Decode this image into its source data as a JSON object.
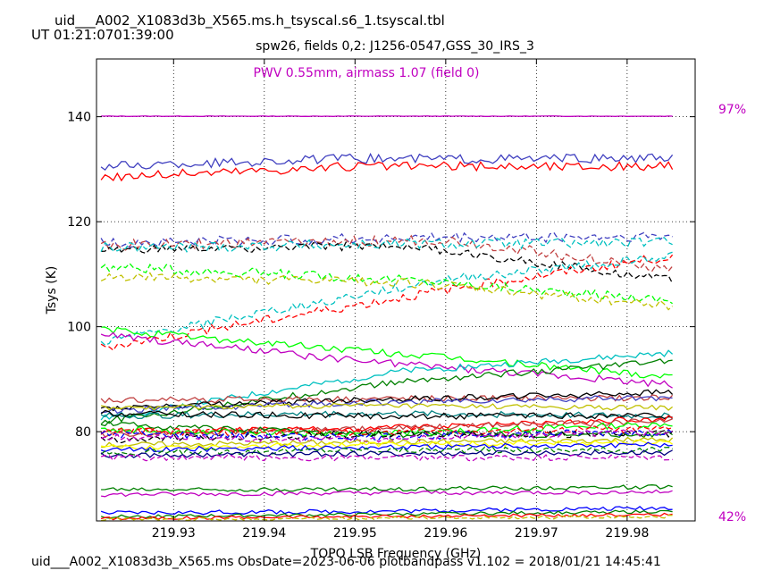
{
  "header": {
    "title": "uid___A002_X1083d3b_X565.ms.h_tsyscal.s6_1.tsyscal.tbl",
    "ut": "UT 01:21:0701:39:00"
  },
  "footer": {
    "text": "uid___A002_X1083d3b_X565.ms  ObsDate=2023-06-06   plotbandpass v1.102 = 2018/01/21 14:45:41"
  },
  "chart_data": {
    "type": "line",
    "title": "spw26,  fields 0,2: J1256-0547,GSS_30_IRS_3",
    "annotation": "PWV 0.55mm, airmass 1.07 (field 0)",
    "xlabel": "TOPO LSB Frequency (GHz)",
    "ylabel": "Tsys (K)",
    "xlim": [
      219.9215,
      219.9875
    ],
    "ylim": [
      63,
      151
    ],
    "xticks": [
      219.93,
      219.94,
      219.95,
      219.96,
      219.97,
      219.98
    ],
    "yticks": [
      80,
      100,
      120,
      140
    ],
    "grid": true,
    "right_labels": {
      "top": "97%",
      "bottom": "42%"
    },
    "series": [
      {
        "color": "#c000c0",
        "dash": false,
        "noise": 0.05,
        "x": [
          219.922,
          219.985
        ],
        "y": [
          140.1,
          140.1
        ]
      },
      {
        "color": "#4040c0",
        "dash": false,
        "noise": 0.9,
        "x": [
          219.922,
          219.95,
          219.985
        ],
        "y": [
          130.5,
          132.0,
          132.0
        ]
      },
      {
        "color": "#ff0000",
        "dash": false,
        "noise": 0.9,
        "x": [
          219.922,
          219.95,
          219.985
        ],
        "y": [
          128.5,
          130.5,
          130.5
        ]
      },
      {
        "color": "#4040c0",
        "dash": true,
        "noise": 1.0,
        "x": [
          219.922,
          219.96,
          219.985
        ],
        "y": [
          116.0,
          117.0,
          117.2
        ]
      },
      {
        "color": "#c04040",
        "dash": true,
        "noise": 1.0,
        "x": [
          219.922,
          219.96,
          219.985
        ],
        "y": [
          115.5,
          116.5,
          111.0
        ]
      },
      {
        "color": "#000000",
        "dash": true,
        "noise": 0.8,
        "x": [
          219.922,
          219.955,
          219.985
        ],
        "y": [
          114.5,
          115.5,
          109.0
        ]
      },
      {
        "color": "#00c0c0",
        "dash": true,
        "noise": 1.0,
        "x": [
          219.922,
          219.955,
          219.985
        ],
        "y": [
          115.0,
          115.8,
          116.0
        ]
      },
      {
        "color": "#ff0000",
        "dash": true,
        "noise": 0.9,
        "x": [
          219.922,
          219.96,
          219.985
        ],
        "y": [
          96.0,
          107.0,
          113.5
        ]
      },
      {
        "color": "#00c0c0",
        "dash": true,
        "noise": 0.9,
        "x": [
          219.922,
          219.96,
          219.985
        ],
        "y": [
          97.0,
          109.0,
          113.5
        ]
      },
      {
        "color": "#00ff00",
        "dash": true,
        "noise": 0.9,
        "x": [
          219.922,
          219.955,
          219.985
        ],
        "y": [
          111.5,
          109.0,
          105.0
        ]
      },
      {
        "color": "#c0c000",
        "dash": true,
        "noise": 0.9,
        "x": [
          219.922,
          219.955,
          219.985
        ],
        "y": [
          109.5,
          108.5,
          104.0
        ]
      },
      {
        "color": "#00ff00",
        "dash": false,
        "noise": 0.7,
        "x": [
          219.922,
          219.95,
          219.985
        ],
        "y": [
          99.5,
          95.5,
          90.5
        ]
      },
      {
        "color": "#c000c0",
        "dash": false,
        "noise": 0.7,
        "x": [
          219.922,
          219.95,
          219.985
        ],
        "y": [
          98.5,
          93.5,
          89.0
        ]
      },
      {
        "color": "#00c0c0",
        "dash": false,
        "noise": 0.6,
        "x": [
          219.922,
          219.955,
          219.985
        ],
        "y": [
          82.5,
          91.5,
          95.0
        ]
      },
      {
        "color": "#008000",
        "dash": false,
        "noise": 0.6,
        "x": [
          219.922,
          219.955,
          219.985
        ],
        "y": [
          82.0,
          89.5,
          93.5
        ]
      },
      {
        "color": "#c04040",
        "dash": false,
        "noise": 0.6,
        "x": [
          219.922,
          219.95,
          219.985
        ],
        "y": [
          86.0,
          86.2,
          86.5
        ]
      },
      {
        "color": "#000000",
        "dash": false,
        "noise": 0.6,
        "x": [
          219.922,
          219.95,
          219.985
        ],
        "y": [
          84.5,
          86.0,
          87.5
        ]
      },
      {
        "color": "#4040c0",
        "dash": false,
        "noise": 0.6,
        "x": [
          219.922,
          219.95,
          219.985
        ],
        "y": [
          84.0,
          85.5,
          86.5
        ]
      },
      {
        "color": "#c0c000",
        "dash": false,
        "noise": 0.5,
        "x": [
          219.922,
          219.95,
          219.985
        ],
        "y": [
          84.5,
          85.0,
          84.5
        ]
      },
      {
        "color": "#008080",
        "dash": false,
        "noise": 0.6,
        "x": [
          219.922,
          219.95,
          219.985
        ],
        "y": [
          83.0,
          83.5,
          83.0
        ]
      },
      {
        "color": "#000000",
        "dash": false,
        "noise": 0.6,
        "x": [
          219.922,
          219.95,
          219.985
        ],
        "y": [
          83.5,
          83.0,
          83.0
        ]
      },
      {
        "color": "#ff0000",
        "dash": false,
        "noise": 0.6,
        "x": [
          219.922,
          219.95,
          219.985
        ],
        "y": [
          80.0,
          80.5,
          82.5
        ]
      },
      {
        "color": "#c04040",
        "dash": false,
        "noise": 0.6,
        "x": [
          219.922,
          219.95,
          219.985
        ],
        "y": [
          79.5,
          80.5,
          82.0
        ]
      },
      {
        "color": "#00ff00",
        "dash": false,
        "noise": 0.6,
        "x": [
          219.922,
          219.95,
          219.985
        ],
        "y": [
          80.5,
          79.5,
          81.5
        ]
      },
      {
        "color": "#008000",
        "dash": false,
        "noise": 0.6,
        "x": [
          219.922,
          219.95,
          219.985
        ],
        "y": [
          81.5,
          79.5,
          79.5
        ]
      },
      {
        "color": "#ff0000",
        "dash": true,
        "noise": 0.7,
        "x": [
          219.922,
          219.95,
          219.985
        ],
        "y": [
          80.0,
          80.0,
          80.5
        ]
      },
      {
        "color": "#000000",
        "dash": true,
        "noise": 0.7,
        "x": [
          219.922,
          219.95,
          219.985
        ],
        "y": [
          78.5,
          79.5,
          79.5
        ]
      },
      {
        "color": "#0000ff",
        "dash": true,
        "noise": 0.7,
        "x": [
          219.922,
          219.95,
          219.985
        ],
        "y": [
          79.5,
          79.0,
          80.0
        ]
      },
      {
        "color": "#c000c0",
        "dash": true,
        "noise": 0.7,
        "x": [
          219.922,
          219.95,
          219.985
        ],
        "y": [
          79.0,
          78.5,
          80.0
        ]
      },
      {
        "color": "#c0c000",
        "dash": false,
        "noise": 0.5,
        "x": [
          219.922,
          219.95,
          219.985
        ],
        "y": [
          77.5,
          78.0,
          78.5
        ]
      },
      {
        "color": "#ffff00",
        "dash": false,
        "noise": 0.5,
        "x": [
          219.922,
          219.95,
          219.985
        ],
        "y": [
          77.0,
          77.5,
          78.0
        ]
      },
      {
        "color": "#0000ff",
        "dash": false,
        "noise": 0.5,
        "x": [
          219.922,
          219.95,
          219.985
        ],
        "y": [
          76.5,
          77.0,
          77.5
        ]
      },
      {
        "color": "#008000",
        "dash": true,
        "noise": 0.6,
        "x": [
          219.922,
          219.95,
          219.985
        ],
        "y": [
          76.0,
          76.5,
          76.5
        ]
      },
      {
        "color": "#000080",
        "dash": false,
        "noise": 0.5,
        "x": [
          219.922,
          219.95,
          219.985
        ],
        "y": [
          75.5,
          75.8,
          76.0
        ]
      },
      {
        "color": "#c000c0",
        "dash": true,
        "noise": 0.6,
        "x": [
          219.922,
          219.95,
          219.985
        ],
        "y": [
          75.0,
          75.0,
          75.0
        ]
      },
      {
        "color": "#008000",
        "dash": false,
        "noise": 0.4,
        "x": [
          219.922,
          219.95,
          219.985
        ],
        "y": [
          69.0,
          69.0,
          69.5
        ]
      },
      {
        "color": "#c000c0",
        "dash": false,
        "noise": 0.4,
        "x": [
          219.922,
          219.95,
          219.985
        ],
        "y": [
          68.0,
          68.3,
          68.5
        ]
      },
      {
        "color": "#0000ff",
        "dash": false,
        "noise": 0.4,
        "x": [
          219.922,
          219.95,
          219.985
        ],
        "y": [
          64.5,
          64.8,
          65.5
        ]
      },
      {
        "color": "#008000",
        "dash": false,
        "noise": 0.3,
        "x": [
          219.922,
          219.95,
          219.985
        ],
        "y": [
          63.8,
          64.2,
          64.8
        ]
      },
      {
        "color": "#ff0000",
        "dash": false,
        "noise": 0.3,
        "x": [
          219.922,
          219.95,
          219.985
        ],
        "y": [
          63.5,
          63.8,
          64.2
        ]
      },
      {
        "color": "#c0c000",
        "dash": true,
        "noise": 0.3,
        "x": [
          219.922,
          219.95,
          219.985
        ],
        "y": [
          63.3,
          63.5,
          63.8
        ]
      }
    ]
  }
}
